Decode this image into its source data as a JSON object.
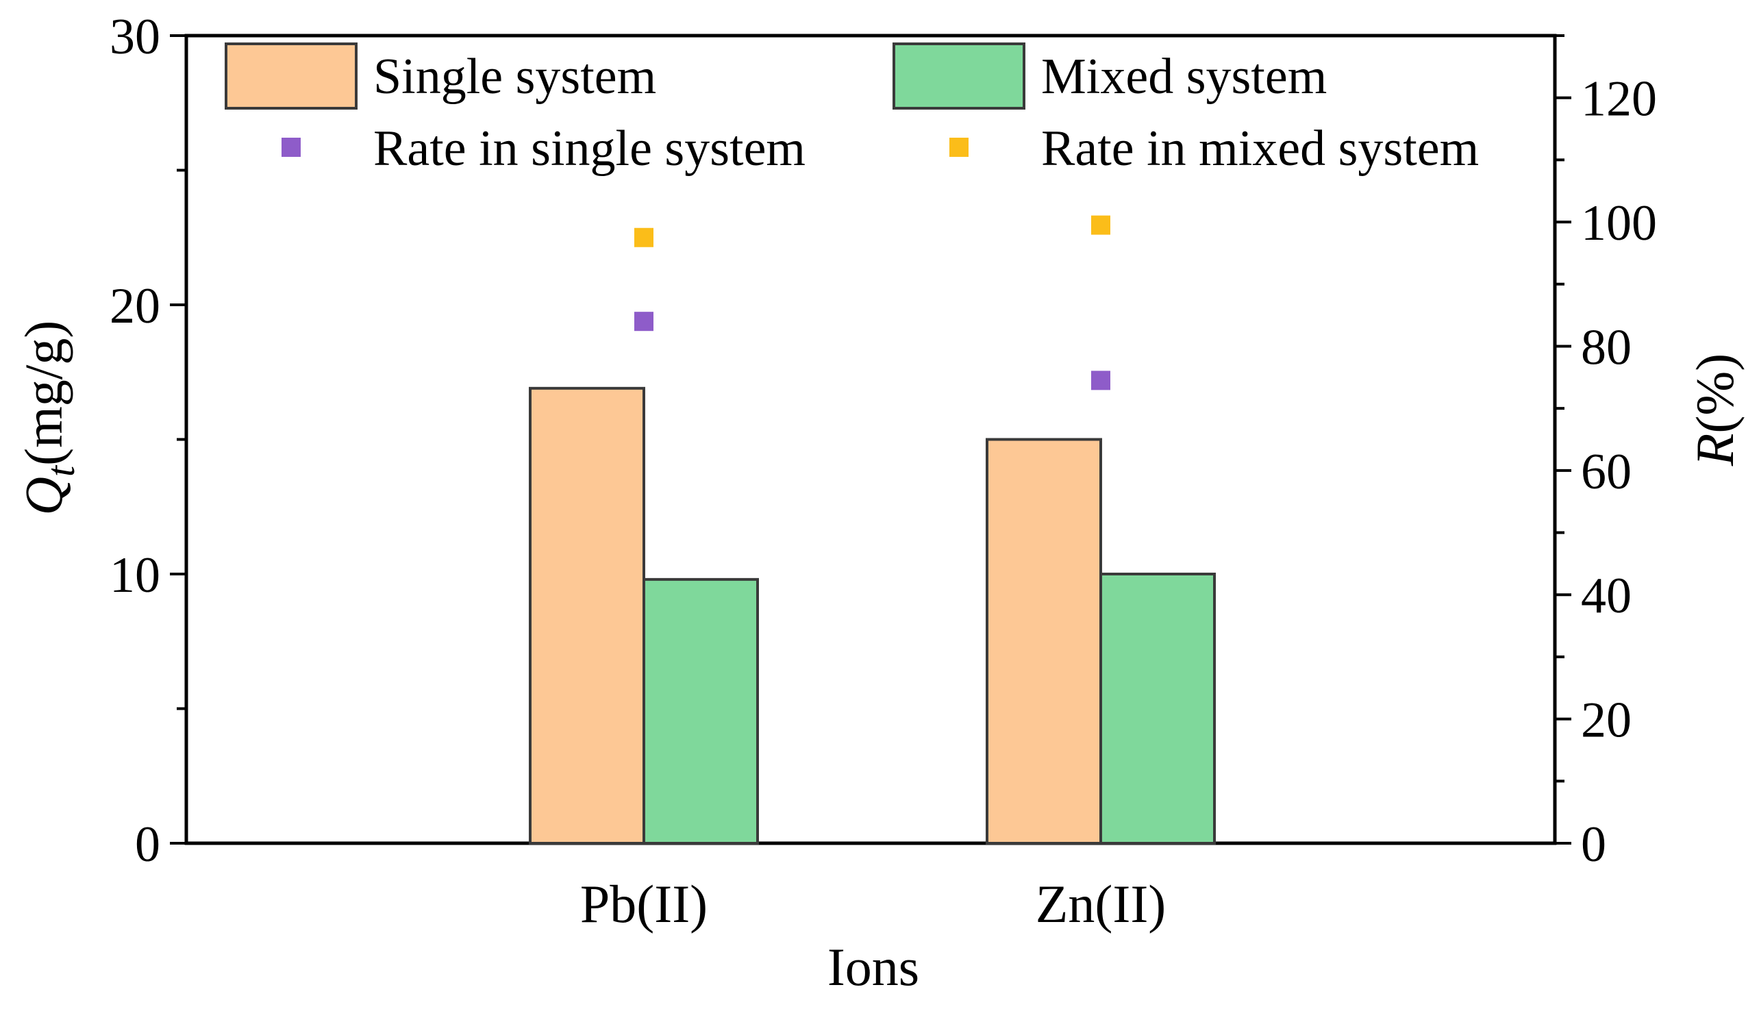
{
  "chart_data": {
    "type": "bar",
    "categories": [
      "Pb(II)",
      "Zn(II)"
    ],
    "series": [
      {
        "name": "Single system",
        "kind": "bar",
        "axis": "left",
        "color": "#fdc895",
        "values": [
          16.9,
          15.0
        ]
      },
      {
        "name": "Mixed system",
        "kind": "bar",
        "axis": "left",
        "color": "#7fd89b",
        "values": [
          9.8,
          10.0
        ]
      },
      {
        "name": "Rate in single system",
        "kind": "scatter",
        "axis": "right",
        "color": "#8e5cc9",
        "values": [
          84,
          74.5
        ]
      },
      {
        "name": "Rate in mixed system",
        "kind": "scatter",
        "axis": "right",
        "color": "#fbbd19",
        "values": [
          97.5,
          99.5
        ]
      }
    ],
    "xlabel": "Ions",
    "ylabel": {
      "main": "Q",
      "subscript": "t",
      "unit": "(mg/g)"
    },
    "y2label": {
      "main": "R",
      "unit": "(%)"
    },
    "ylim": [
      0,
      30
    ],
    "y2lim": [
      0,
      130
    ],
    "yticks": [
      0,
      10,
      20,
      30
    ],
    "y2ticks": [
      0,
      20,
      40,
      60,
      80,
      100,
      120
    ],
    "legend": "top, two columns"
  }
}
